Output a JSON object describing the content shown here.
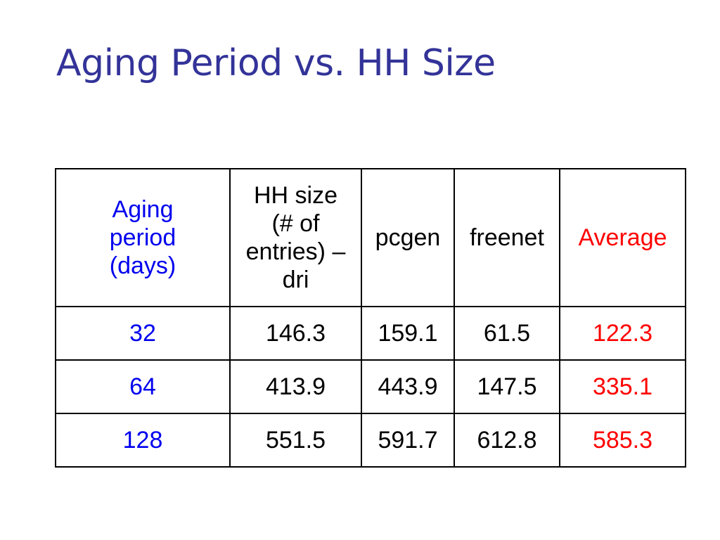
{
  "slide": {
    "title": "Aging Period vs. HH Size"
  },
  "table": {
    "headers": {
      "aging_period": "Aging\nperiod\n(days)",
      "hh_size": "HH size\n(# of\nentries) –\ndri",
      "pcgen": "pcgen",
      "freenet": "freenet",
      "average": "Average"
    },
    "rows": [
      {
        "aging_period": "32",
        "hh_size": "146.3",
        "pcgen": "159.1",
        "freenet": "61.5",
        "average": "122.3"
      },
      {
        "aging_period": "64",
        "hh_size": "413.9",
        "pcgen": "443.9",
        "freenet": "147.5",
        "average": "335.1"
      },
      {
        "aging_period": "128",
        "hh_size": "551.5",
        "pcgen": "591.7",
        "freenet": "612.8",
        "average": "585.3"
      }
    ]
  },
  "colors": {
    "title": "#333399",
    "aging_column": "#0000ee",
    "average_column": "#ff0000",
    "text": "#000000"
  }
}
